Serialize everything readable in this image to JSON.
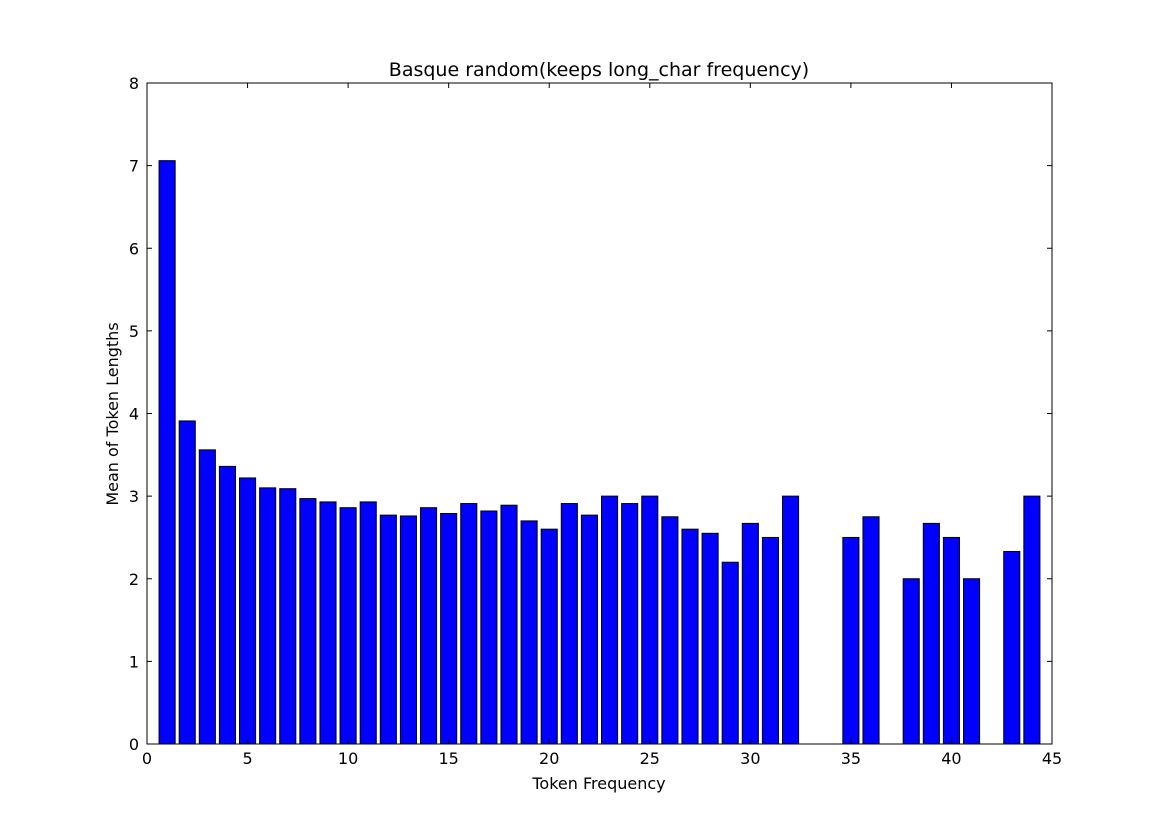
{
  "chart_data": {
    "type": "bar",
    "title": "Basque random(keeps long_char frequency)",
    "xlabel": "Token Frequency",
    "ylabel": "Mean of Token Lengths",
    "xlim": [
      0,
      45
    ],
    "ylim": [
      0,
      8
    ],
    "xticks": [
      "0",
      "5",
      "10",
      "15",
      "20",
      "25",
      "30",
      "35",
      "40",
      "45"
    ],
    "yticks": [
      "0",
      "1",
      "2",
      "3",
      "4",
      "5",
      "6",
      "7",
      "8"
    ],
    "bar_color": "#0000ff",
    "bar_width": 0.8,
    "x": [
      1,
      2,
      3,
      4,
      5,
      6,
      7,
      8,
      9,
      10,
      11,
      12,
      13,
      14,
      15,
      16,
      17,
      18,
      19,
      20,
      21,
      22,
      23,
      24,
      25,
      26,
      27,
      28,
      29,
      30,
      31,
      32,
      35,
      36,
      38,
      39,
      40,
      41,
      43,
      44
    ],
    "values": [
      7.06,
      3.91,
      3.56,
      3.36,
      3.22,
      3.1,
      3.09,
      2.97,
      2.93,
      2.86,
      2.93,
      2.77,
      2.76,
      2.86,
      2.79,
      2.91,
      2.82,
      2.89,
      2.7,
      2.6,
      2.91,
      2.77,
      3.0,
      2.91,
      3.0,
      2.75,
      2.6,
      2.55,
      2.2,
      2.67,
      2.5,
      3.0,
      2.5,
      2.75,
      2.0,
      2.67,
      2.5,
      2.0,
      2.33,
      3.0
    ],
    "grid": false,
    "legend": "none"
  }
}
